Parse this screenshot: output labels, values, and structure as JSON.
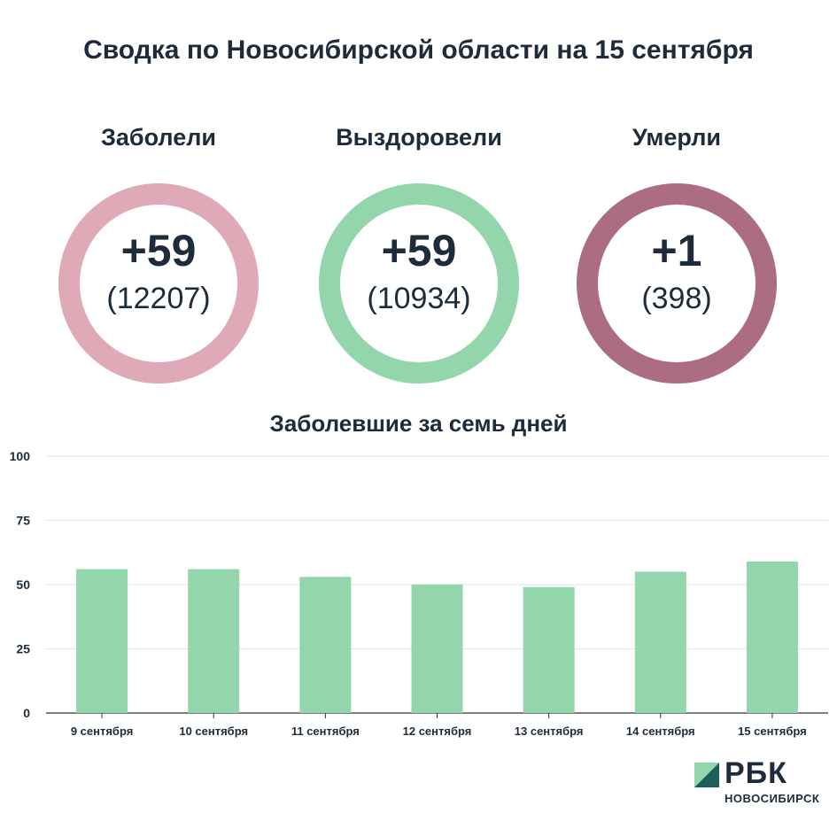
{
  "title": "Сводка по Новосибирской области на 15 сентября",
  "stats": [
    {
      "label": "Заболели",
      "delta": "+59",
      "total": "(12207)",
      "color": "#dfa9b7"
    },
    {
      "label": "Выздоровели",
      "delta": "+59",
      "total": "(10934)",
      "color": "#93d6ac"
    },
    {
      "label": "Умерли",
      "delta": "+1",
      "total": "(398)",
      "color": "#ac6d82"
    }
  ],
  "chart_data": {
    "type": "bar",
    "title": "Заболевшие за семь дней",
    "categories": [
      "9 сентября",
      "10 сентября",
      "11 сентября",
      "12 сентября",
      "13 сентября",
      "14 сентября",
      "15 сентября"
    ],
    "values": [
      56,
      56,
      53,
      50,
      49,
      55,
      59
    ],
    "ylim": [
      0,
      100
    ],
    "yticks": [
      0,
      25,
      50,
      75,
      100
    ],
    "grid": true,
    "bar_color": "#93d6ac"
  },
  "brand": {
    "name": "РБК",
    "city": "НОВОСИБИРСК"
  }
}
